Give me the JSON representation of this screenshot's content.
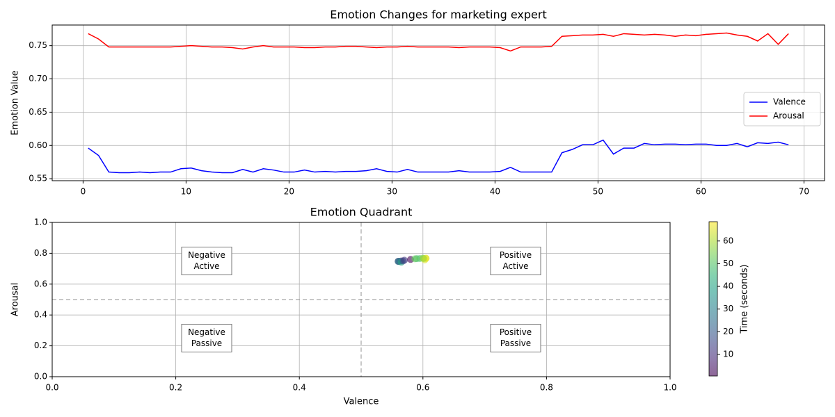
{
  "chart_data": [
    {
      "type": "line",
      "title": "Emotion Changes for marketing expert",
      "y_label": "Emotion Value",
      "x": [
        0.5,
        1.5,
        2.5,
        3.5,
        4.5,
        5.5,
        6.5,
        7.5,
        8.5,
        9.5,
        10.5,
        11.5,
        12.5,
        13.5,
        14.5,
        15.5,
        16.5,
        17.5,
        18.5,
        19.5,
        20.5,
        21.5,
        22.5,
        23.5,
        24.5,
        25.5,
        26.5,
        27.5,
        28.5,
        29.5,
        30.5,
        31.5,
        32.5,
        33.5,
        34.5,
        35.5,
        36.5,
        37.5,
        38.5,
        39.5,
        40.5,
        41.5,
        42.5,
        43.5,
        44.5,
        45.5,
        46.5,
        47.5,
        48.5,
        49.5,
        50.5,
        51.5,
        52.5,
        53.5,
        54.5,
        55.5,
        56.5,
        57.5,
        58.5,
        59.5,
        60.5,
        61.5,
        62.5,
        63.5,
        64.5,
        65.5,
        66.5,
        67.5,
        68.5
      ],
      "series": [
        {
          "name": "Valence",
          "color": "#0000ff",
          "values": [
            0.596,
            0.585,
            0.56,
            0.559,
            0.559,
            0.56,
            0.559,
            0.56,
            0.56,
            0.565,
            0.566,
            0.562,
            0.56,
            0.559,
            0.559,
            0.564,
            0.56,
            0.565,
            0.563,
            0.56,
            0.56,
            0.563,
            0.56,
            0.561,
            0.56,
            0.561,
            0.561,
            0.562,
            0.565,
            0.561,
            0.56,
            0.564,
            0.56,
            0.56,
            0.56,
            0.56,
            0.562,
            0.56,
            0.56,
            0.56,
            0.561,
            0.567,
            0.56,
            0.56,
            0.56,
            0.56,
            0.589,
            0.594,
            0.601,
            0.601,
            0.608,
            0.587,
            0.596,
            0.596,
            0.603,
            0.601,
            0.602,
            0.602,
            0.601,
            0.602,
            0.602,
            0.6,
            0.6,
            0.603,
            0.598,
            0.604,
            0.603,
            0.605,
            0.601
          ]
        },
        {
          "name": "Arousal",
          "color": "#ff0000",
          "values": [
            0.768,
            0.76,
            0.748,
            0.748,
            0.748,
            0.748,
            0.748,
            0.748,
            0.748,
            0.749,
            0.75,
            0.749,
            0.748,
            0.748,
            0.747,
            0.745,
            0.748,
            0.75,
            0.748,
            0.748,
            0.748,
            0.747,
            0.747,
            0.748,
            0.748,
            0.749,
            0.749,
            0.748,
            0.747,
            0.748,
            0.748,
            0.749,
            0.748,
            0.748,
            0.748,
            0.748,
            0.747,
            0.748,
            0.748,
            0.748,
            0.747,
            0.742,
            0.748,
            0.748,
            0.748,
            0.749,
            0.764,
            0.765,
            0.766,
            0.766,
            0.767,
            0.764,
            0.768,
            0.767,
            0.766,
            0.767,
            0.766,
            0.764,
            0.766,
            0.765,
            0.767,
            0.768,
            0.769,
            0.766,
            0.764,
            0.757,
            0.768,
            0.752,
            0.768
          ]
        }
      ],
      "xlim": [
        -3,
        72
      ],
      "xticks": [
        0,
        10,
        20,
        30,
        40,
        50,
        60,
        70
      ],
      "ylim": [
        0.547,
        0.781
      ],
      "yticks": [
        0.55,
        {
          "value": 0.6,
          "label": "0.60"
        },
        0.65,
        {
          "value": 0.7,
          "label": "0.70"
        },
        0.75
      ],
      "grid": true,
      "legend": "center right"
    },
    {
      "type": "scatter",
      "title": "Emotion Quadrant",
      "x_label": "Valence",
      "y_label": "Arousal",
      "x": [
        0.56,
        0.565,
        0.562,
        0.56,
        0.565,
        0.568,
        0.57,
        0.58,
        0.59,
        0.595,
        0.6,
        0.605,
        0.603,
        0.605,
        0.587,
        0.601
      ],
      "y": [
        0.748,
        0.75,
        0.748,
        0.747,
        0.742,
        0.75,
        0.755,
        0.76,
        0.765,
        0.766,
        0.768,
        0.767,
        0.757,
        0.768,
        0.764,
        0.766
      ],
      "c": [
        3,
        10,
        20,
        30,
        41,
        18,
        12,
        1,
        48,
        50,
        55,
        60,
        65,
        68,
        52,
        58
      ],
      "colormap": "viridis",
      "alpha": 0.6,
      "xlim": [
        0,
        1
      ],
      "xticks": [
        {
          "value": 0,
          "label": "0.0"
        },
        0.2,
        0.4,
        0.6,
        0.8,
        {
          "value": 1,
          "label": "1.0"
        }
      ],
      "ylim": [
        0,
        1
      ],
      "yticks": [
        {
          "value": 0,
          "label": "0.0"
        },
        0.2,
        0.4,
        0.6,
        0.8,
        {
          "value": 1,
          "label": "1.0"
        }
      ],
      "grid": true,
      "hlines": [
        0.5
      ],
      "vlines": [
        0.5
      ],
      "annotations": [
        {
          "x": 0.25,
          "y": 0.75,
          "lines": [
            "Negative",
            "Active"
          ]
        },
        {
          "x": 0.75,
          "y": 0.75,
          "lines": [
            "Positive",
            "Active"
          ]
        },
        {
          "x": 0.25,
          "y": 0.25,
          "lines": [
            "Negative",
            "Passive"
          ]
        },
        {
          "x": 0.75,
          "y": 0.25,
          "lines": [
            "Positive",
            "Passive"
          ]
        }
      ],
      "colorbar": {
        "label": "Time (seconds)",
        "lim": [
          0.5,
          68.5
        ],
        "ticks": [
          10,
          20,
          30,
          40,
          50,
          60
        ]
      }
    }
  ]
}
